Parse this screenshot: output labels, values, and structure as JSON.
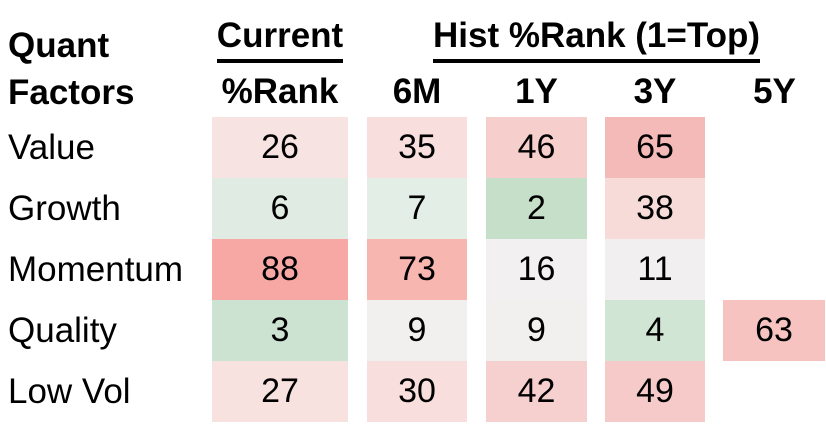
{
  "title": {
    "line1": "Quant",
    "line2": "Factors"
  },
  "header": {
    "current_group_label": "Current",
    "current_sub_label": "%Rank",
    "hist_group_label": "Hist %Rank (1=Top)",
    "period_labels": [
      "6M",
      "1Y",
      "3Y",
      "5Y"
    ]
  },
  "chart_data": {
    "type": "heatmap",
    "title": "Quant Factors percentile rank heatmap (1=Top)",
    "row_header": "Quant Factors",
    "columns": [
      "Current %Rank",
      "6M",
      "1Y",
      "3Y",
      "5Y"
    ],
    "rows": [
      "Value",
      "Growth",
      "Momentum",
      "Quality",
      "Low Vol"
    ],
    "values": [
      [
        26,
        35,
        46,
        65,
        null
      ],
      [
        6,
        7,
        2,
        38,
        null
      ],
      [
        88,
        73,
        16,
        11,
        null
      ],
      [
        3,
        9,
        9,
        4,
        63
      ],
      [
        27,
        30,
        42,
        49,
        null
      ]
    ],
    "cell_colors": [
      [
        "#f7e4e2",
        "#f8dedc",
        "#f6cecc",
        "#f4bab7",
        null
      ],
      [
        "#e0ece3",
        "#e3eee6",
        "#c5dfc9",
        "#f7dbd9",
        null
      ],
      [
        "#f7a8a5",
        "#f8b6b1",
        "#f2f0f0",
        "#f1efef",
        null
      ],
      [
        "#cde3d1",
        "#f1f0ef",
        "#f1f0ef",
        "#d0e5d3",
        "#f6c3c0"
      ],
      [
        "#f7e2e0",
        "#f8dedc",
        "#f6d0ce",
        "#f5cac8",
        null
      ]
    ],
    "color_scale": {
      "low_good": "#c5dfc9",
      "neutral": "#f1efef",
      "high_bad": "#f7a8a5"
    }
  },
  "colors": {
    "text": "#000000",
    "background": "#ffffff"
  }
}
